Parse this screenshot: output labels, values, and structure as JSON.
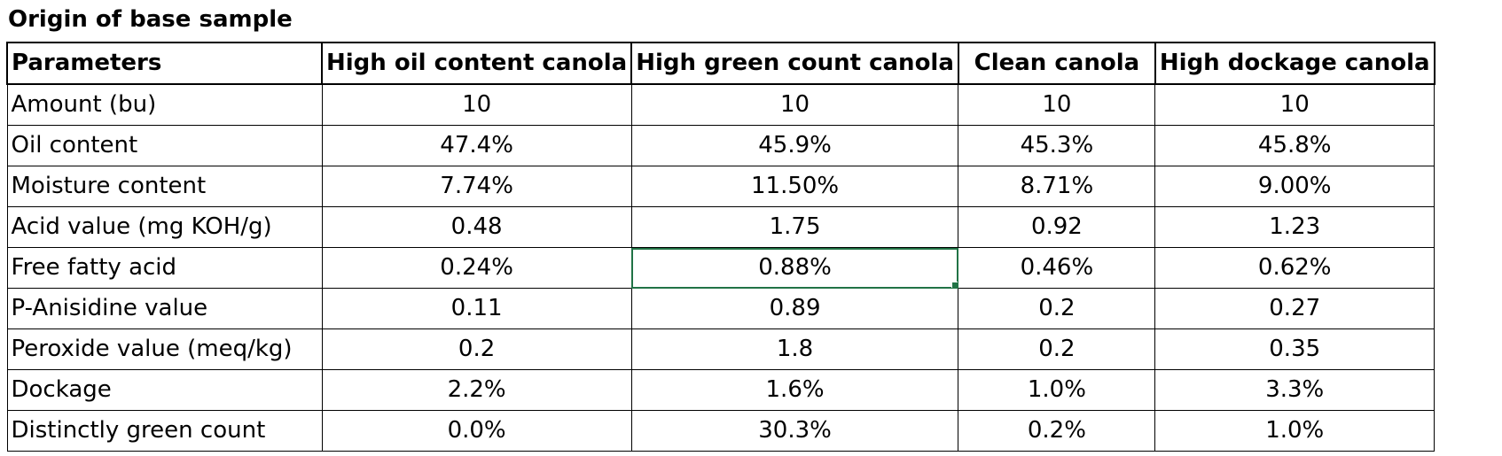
{
  "title": "Origin of base sample",
  "table": {
    "headers": [
      "Parameters",
      "High oil content canola",
      "High green count canola",
      "Clean canola",
      "High dockage canola"
    ],
    "rows": [
      {
        "label": "Amount (bu)",
        "values": [
          "10",
          "10",
          "10",
          "10"
        ]
      },
      {
        "label": "Oil content",
        "values": [
          "47.4%",
          "45.9%",
          "45.3%",
          "45.8%"
        ]
      },
      {
        "label": "Moisture content",
        "values": [
          "7.74%",
          "11.50%",
          "8.71%",
          "9.00%"
        ]
      },
      {
        "label": "Acid value (mg KOH/g)",
        "values": [
          "0.48",
          "1.75",
          "0.92",
          "1.23"
        ]
      },
      {
        "label": "Free fatty acid",
        "values": [
          "0.24%",
          "0.88%",
          "0.46%",
          "0.62%"
        ]
      },
      {
        "label": "P-Anisidine value",
        "values": [
          "0.11",
          "0.89",
          "0.2",
          "0.27"
        ]
      },
      {
        "label": "Peroxide value (meq/kg)",
        "values": [
          "0.2",
          "1.8",
          "0.2",
          "0.35"
        ]
      },
      {
        "label": "Dockage",
        "values": [
          "2.2%",
          "1.6%",
          "1.0%",
          "3.3%"
        ]
      },
      {
        "label": "Distinctly green count",
        "values": [
          "0.0%",
          "30.3%",
          "0.2%",
          "1.0%"
        ]
      }
    ]
  },
  "colors": {
    "selection": "#217346",
    "grid": "#000000"
  }
}
